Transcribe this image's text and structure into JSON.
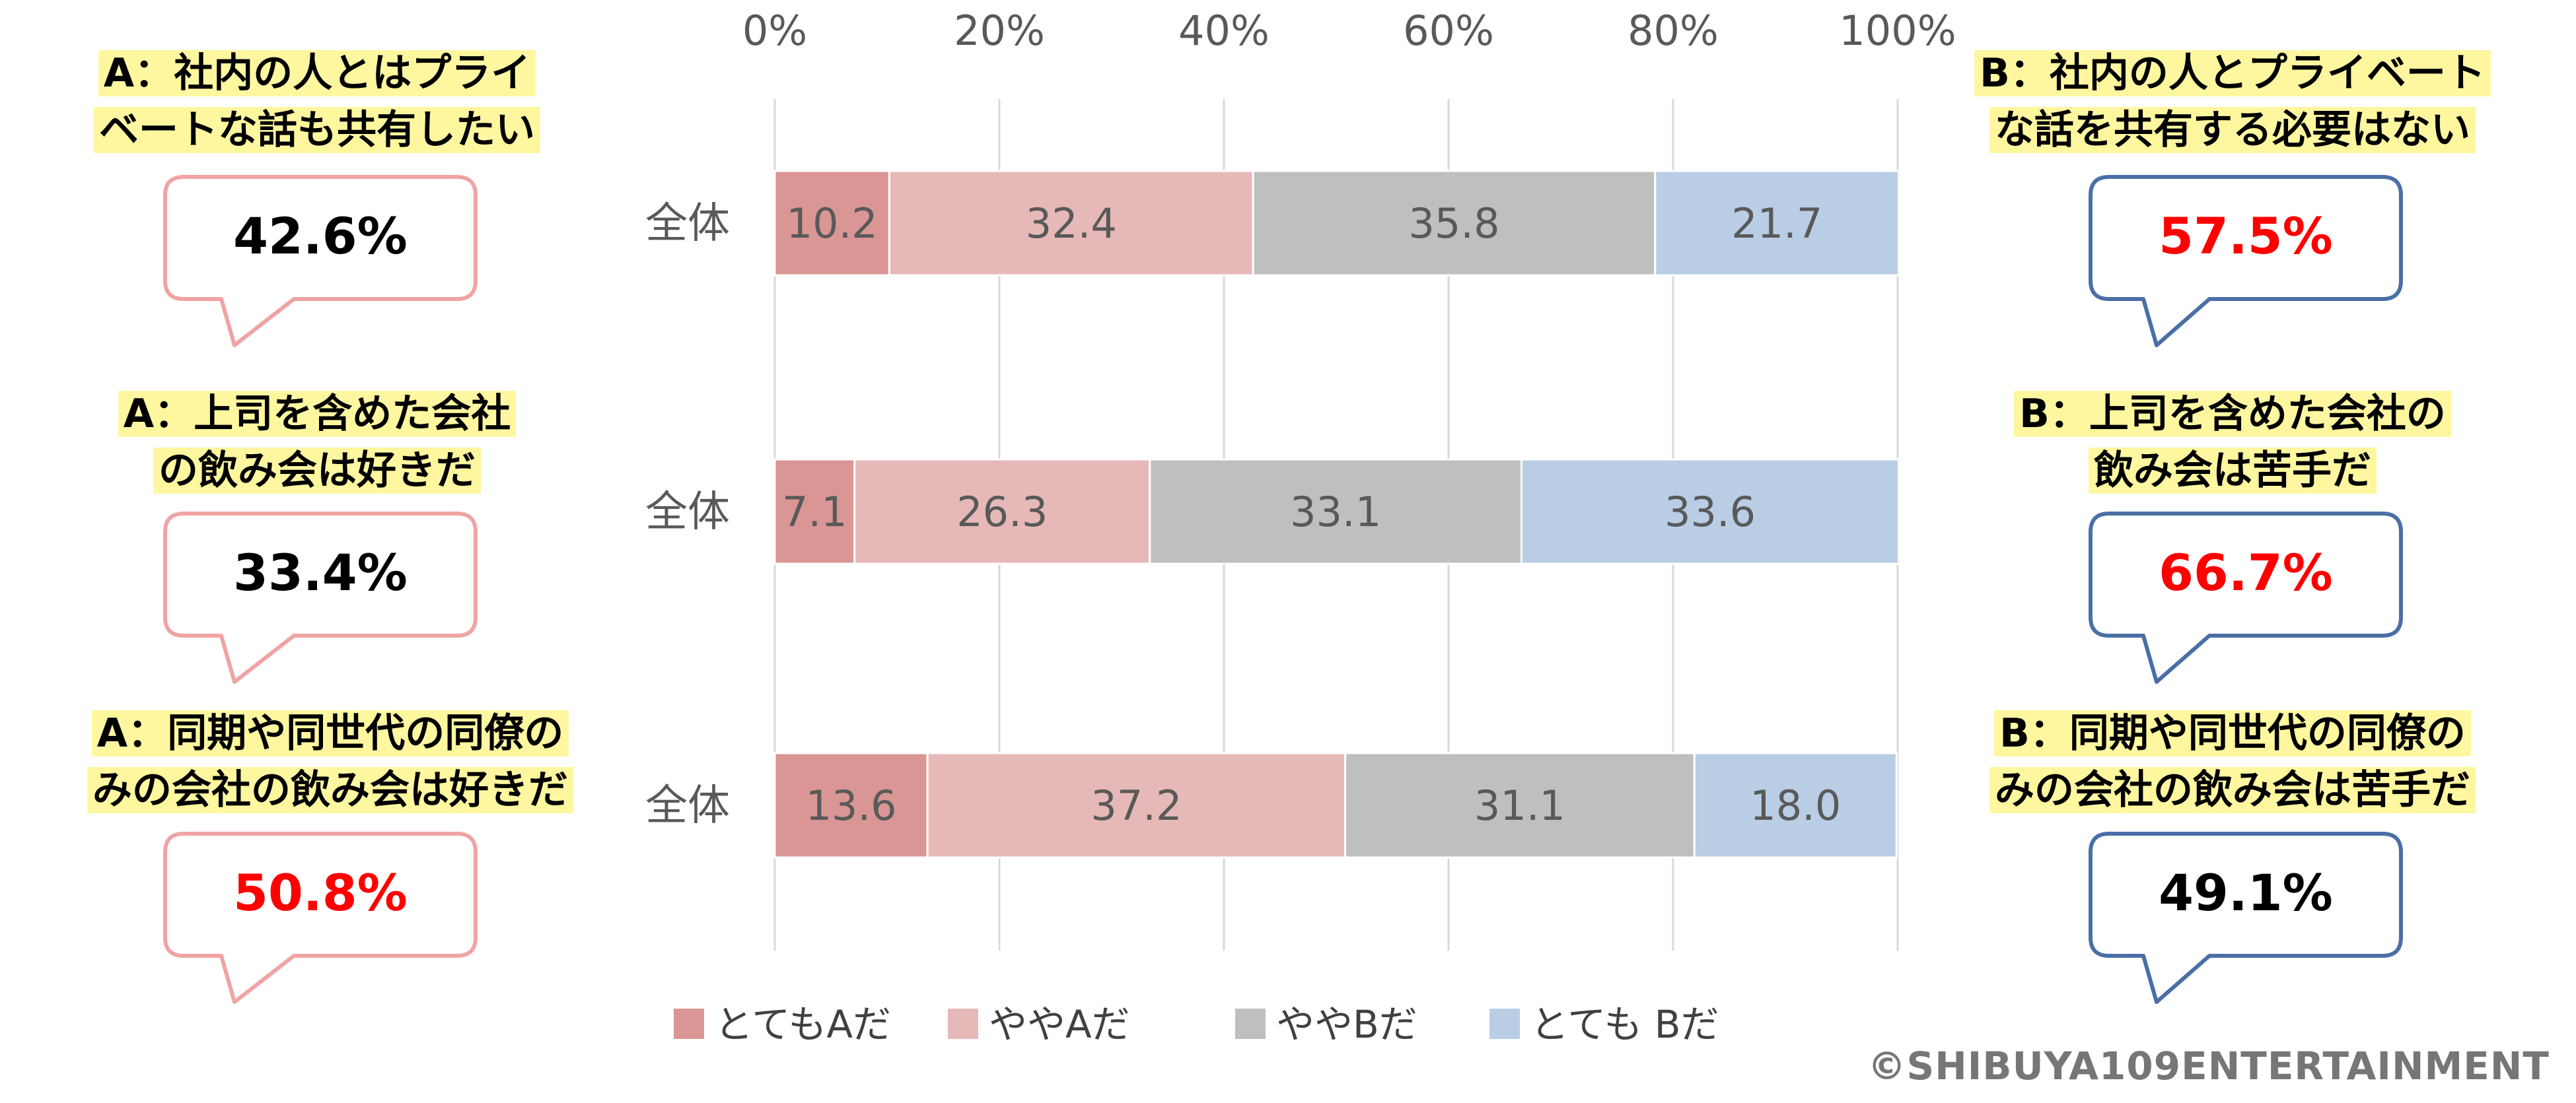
{
  "chart_data": {
    "type": "bar",
    "orientation": "horizontal",
    "stacked": true,
    "categories": [
      "全体",
      "全体",
      "全体"
    ],
    "series": [
      {
        "name": "とてもAだ",
        "values": [
          10.2,
          7.1,
          13.6
        ]
      },
      {
        "name": "ややAだ",
        "values": [
          32.4,
          26.3,
          37.2
        ]
      },
      {
        "name": "ややBだ",
        "values": [
          35.8,
          33.1,
          31.1
        ]
      },
      {
        "name": "とても Bだ",
        "values": [
          21.7,
          33.6,
          18.0
        ]
      }
    ],
    "xlim": [
      0,
      100
    ],
    "x_ticks": [
      "0%",
      "20%",
      "40%",
      "60%",
      "80%",
      "100%"
    ],
    "grid": true,
    "legend": "bottom"
  },
  "colors": {
    "series": [
      "#d99694",
      "#e6b9b8",
      "#bfbfbf",
      "#b9cde5"
    ],
    "bubble_left_border": "#f0a3a3",
    "bubble_right_border": "#4a6fa5",
    "highlight": "#fff7a0",
    "emphasis_red": "#ff0000",
    "grid": "#d9d9d9",
    "text_gray": "#595959"
  },
  "statements": [
    {
      "a_lines": [
        "A：社内の人とはプライ",
        "ベートな話も共有したい"
      ],
      "a_value": "42.6%",
      "b_lines": [
        "B：社内の人とプライベート",
        "な話を共有する必要はない"
      ],
      "b_value": "57.5%",
      "emphasis": "b"
    },
    {
      "a_lines": [
        "A：上司を含めた会社",
        "の飲み会は好きだ"
      ],
      "a_value": "33.4%",
      "b_lines": [
        "B：上司を含めた会社の",
        "飲み会は苦手だ"
      ],
      "b_value": "66.7%",
      "emphasis": "b"
    },
    {
      "a_lines": [
        "A：同期や同世代の同僚の",
        "みの会社の飲み会は好きだ"
      ],
      "a_value": "50.8%",
      "b_lines": [
        "B：同期や同世代の同僚の",
        "みの会社の飲み会は苦手だ"
      ],
      "b_value": "49.1%",
      "emphasis": "a"
    }
  ],
  "copyright": "©SHIBUYA109ENTERTAINMENT"
}
